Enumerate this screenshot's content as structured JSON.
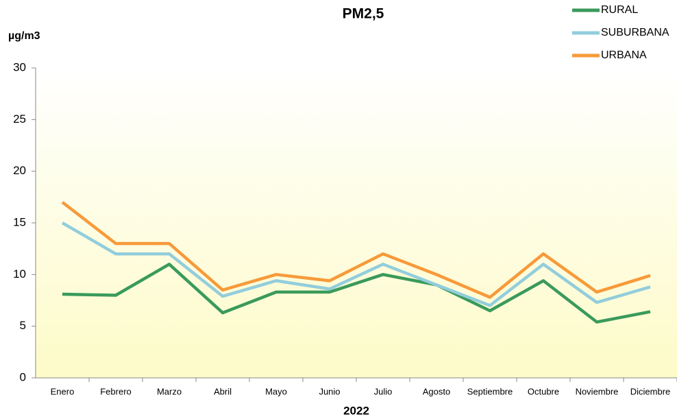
{
  "chart_data": {
    "type": "line",
    "title": "PM2,5",
    "y_label": "µg/m3",
    "x_label": "2022",
    "categories": [
      "Enero",
      "Febrero",
      "Marzo",
      "Abril",
      "Mayo",
      "Junio",
      "Julio",
      "Agosto",
      "Septiembre",
      "Octubre",
      "Noviembre",
      "Diciembre"
    ],
    "series": [
      {
        "name": "RURAL",
        "color": "#3a9a5b",
        "values": [
          8.1,
          8.0,
          11.0,
          6.3,
          8.3,
          8.3,
          10.0,
          9.0,
          6.5,
          9.4,
          5.4,
          6.4
        ]
      },
      {
        "name": "SUBURBANA",
        "color": "#92cddc",
        "values": [
          15.0,
          12.0,
          12.0,
          7.9,
          9.4,
          8.6,
          11.0,
          9.0,
          7.0,
          11.0,
          7.3,
          8.8
        ]
      },
      {
        "name": "URBANA",
        "color": "#f79a3a",
        "values": [
          17.0,
          13.0,
          13.0,
          8.5,
          10.0,
          9.4,
          12.0,
          10.0,
          7.8,
          12.0,
          8.3,
          9.9
        ]
      }
    ],
    "ylim": [
      0,
      30
    ],
    "yticks": [
      0,
      5,
      10,
      15,
      20,
      25,
      30
    ],
    "legend": "top-right"
  }
}
